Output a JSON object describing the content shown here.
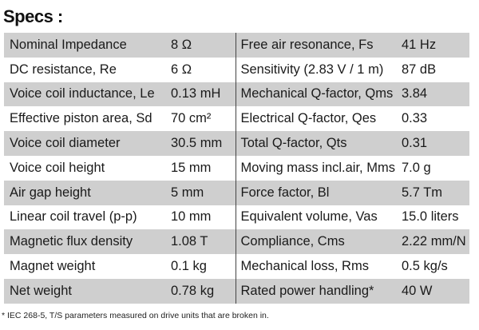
{
  "title": "Specs :",
  "rows": [
    {
      "label_left": "Nominal Impedance",
      "value_left": "8 Ω",
      "label_right": "Free air resonance, Fs",
      "value_right": "41 Hz"
    },
    {
      "label_left": "DC resistance, Re",
      "value_left": "6 Ω",
      "label_right": "Sensitivity (2.83 V / 1 m)",
      "value_right": "87 dB"
    },
    {
      "label_left": "Voice coil inductance, Le",
      "value_left": "0.13 mH",
      "label_right": "Mechanical Q-factor, Qms",
      "value_right": "3.84"
    },
    {
      "label_left": "Effective piston area, Sd",
      "value_left": "70 cm²",
      "label_right": "Electrical Q-factor, Qes",
      "value_right": "0.33"
    },
    {
      "label_left": "Voice coil diameter",
      "value_left": "30.5 mm",
      "label_right": "Total Q-factor, Qts",
      "value_right": "0.31"
    },
    {
      "label_left": "Voice coil height",
      "value_left": "15 mm",
      "label_right": "Moving mass incl.air, Mms",
      "value_right": "7.0 g"
    },
    {
      "label_left": "Air gap height",
      "value_left": "5 mm",
      "label_right": "Force factor, Bl",
      "value_right": "5.7 Tm"
    },
    {
      "label_left": "Linear coil travel (p-p)",
      "value_left": "10 mm",
      "label_right": "Equivalent volume, Vas",
      "value_right": "15.0 liters"
    },
    {
      "label_left": "Magnetic flux density",
      "value_left": "1.08 T",
      "label_right": "Compliance, Cms",
      "value_right": "2.22 mm/N"
    },
    {
      "label_left": "Magnet weight",
      "value_left": "0.1 kg",
      "label_right": "Mechanical loss, Rms",
      "value_right": "0.5 kg/s"
    },
    {
      "label_left": "Net weight",
      "value_left": "0.78 kg",
      "label_right": "Rated power handling*",
      "value_right": "40 W"
    }
  ],
  "footnote": "* IEC 268-5, T/S parameters measured on drive units that are broken in.",
  "colors": {
    "row_shade": "#cfcfcf",
    "background": "#ffffff",
    "text": "#1a1a1a"
  }
}
